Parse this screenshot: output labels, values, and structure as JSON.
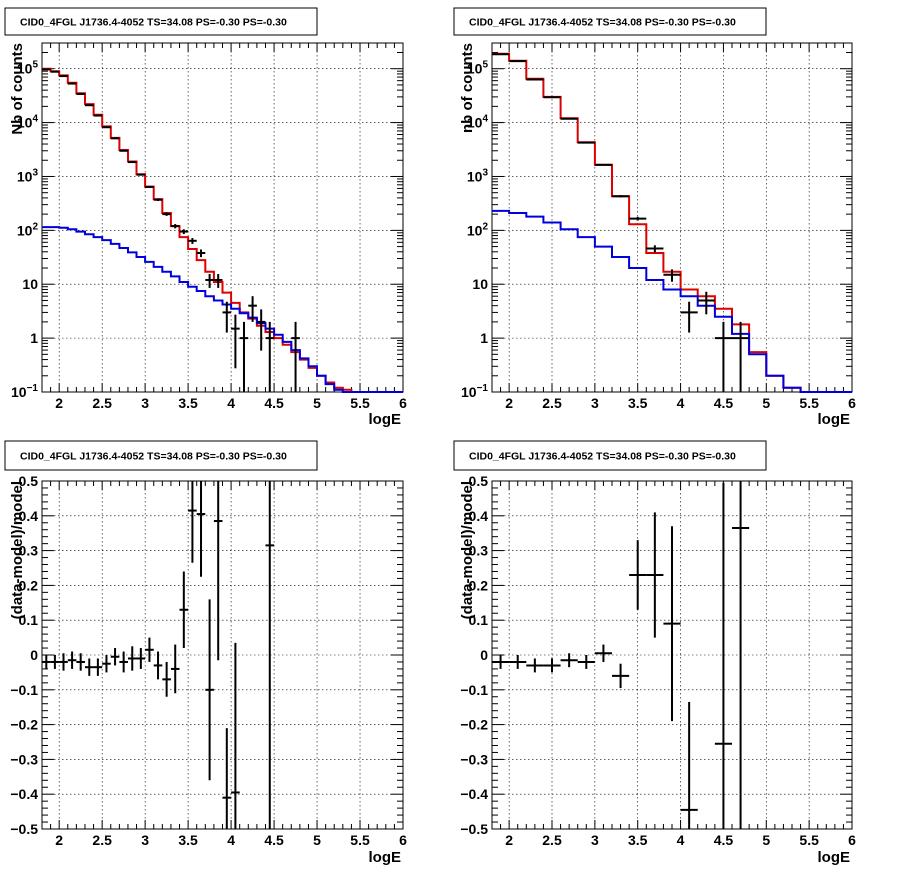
{
  "chart_data": [
    {
      "type": "line",
      "title": "CID0_4FGL J1736.4-4052 TS=34.08 PS=-0.30 PS=-0.30",
      "xlabel": "logE",
      "ylabel": "Nb of counts",
      "xlim": [
        1.8,
        6.0
      ],
      "ylim": [
        0.1,
        300000
      ],
      "log_y": true,
      "grid": true,
      "x_ticks": [
        {
          "v": 2,
          "label": "2"
        },
        {
          "v": 2.5,
          "label": "2.5"
        },
        {
          "v": 3,
          "label": "3"
        },
        {
          "v": 3.5,
          "label": "3.5"
        },
        {
          "v": 4,
          "label": "4"
        },
        {
          "v": 4.5,
          "label": "4.5"
        },
        {
          "v": 5,
          "label": "5"
        },
        {
          "v": 5.5,
          "label": "5.5"
        },
        {
          "v": 6,
          "label": "6"
        }
      ],
      "y_ticks": [
        {
          "v": 0.1,
          "base": "10",
          "exp": "−1"
        },
        {
          "v": 1,
          "base": "1",
          "exp": ""
        },
        {
          "v": 10,
          "base": "10",
          "exp": ""
        },
        {
          "v": 100,
          "base": "10",
          "exp": "2"
        },
        {
          "v": 1000,
          "base": "10",
          "exp": "3"
        },
        {
          "v": 10000,
          "base": "10",
          "exp": "4"
        },
        {
          "v": 100000,
          "base": "10",
          "exp": "5"
        }
      ],
      "series": [
        {
          "color": "#dd0000",
          "style": "step",
          "bin_width": 0.1,
          "x": [
            1.8,
            1.9,
            2.0,
            2.1,
            2.2,
            2.3,
            2.4,
            2.5,
            2.6,
            2.7,
            2.8,
            2.9,
            3.0,
            3.1,
            3.2,
            3.3,
            3.4,
            3.5,
            3.6,
            3.7,
            3.8,
            3.9,
            4.0,
            4.1,
            4.2,
            4.3,
            4.4,
            4.5,
            4.6,
            4.7,
            4.8,
            4.9,
            5.0,
            5.1,
            5.2,
            5.3,
            5.4,
            5.5,
            5.6,
            5.7,
            5.8,
            5.9
          ],
          "y": [
            100000,
            90000,
            75000,
            55000,
            35000,
            22000,
            14000,
            8500,
            5200,
            3100,
            1900,
            1100,
            650,
            380,
            210,
            120,
            75,
            45,
            28,
            17,
            11,
            7,
            4.5,
            3,
            2.3,
            1.7,
            1.3,
            1,
            0.75,
            0.55,
            0.4,
            0.28,
            0.2,
            0.15,
            0.12,
            0.11,
            0.1,
            0.1,
            0.1,
            0.1,
            0.1,
            0.1
          ]
        },
        {
          "color": "#0000dd",
          "style": "step",
          "bin_width": 0.1,
          "x": [
            1.8,
            1.9,
            2.0,
            2.1,
            2.2,
            2.3,
            2.4,
            2.5,
            2.6,
            2.7,
            2.8,
            2.9,
            3.0,
            3.1,
            3.2,
            3.3,
            3.4,
            3.5,
            3.6,
            3.7,
            3.8,
            3.9,
            4.0,
            4.1,
            4.2,
            4.3,
            4.4,
            4.5,
            4.6,
            4.7,
            4.8,
            4.9,
            5.0,
            5.1,
            5.2,
            5.3,
            5.4,
            5.5,
            5.6,
            5.7,
            5.8,
            5.9
          ],
          "y": [
            115,
            115,
            112,
            105,
            95,
            85,
            75,
            66,
            56,
            47,
            39,
            32,
            26,
            21,
            17,
            14,
            11,
            9,
            7.5,
            6,
            5,
            4.2,
            3.5,
            2.9,
            2.4,
            1.9,
            1.5,
            1.15,
            0.85,
            0.6,
            0.42,
            0.3,
            0.2,
            0.14,
            0.11,
            0.1,
            0.1,
            0.1,
            0.1,
            0.1,
            0.1,
            0.1
          ]
        },
        {
          "color": "#000000",
          "style": "points",
          "x": [
            1.85,
            1.95,
            2.05,
            2.15,
            2.25,
            2.35,
            2.45,
            2.55,
            2.65,
            2.75,
            2.85,
            2.95,
            3.05,
            3.15,
            3.25,
            3.35,
            3.45,
            3.55,
            3.65,
            3.75,
            3.85,
            3.95,
            4.05,
            4.15,
            4.25,
            4.35,
            4.45,
            4.75
          ],
          "y": [
            97000,
            88000,
            73000,
            53000,
            34000,
            21000,
            13500,
            8200,
            5100,
            3000,
            1850,
            1080,
            640,
            370,
            200,
            120,
            95,
            64,
            38,
            12,
            12,
            3,
            1.5,
            1,
            4,
            2,
            1,
            1
          ],
          "xerr": 0.05
        }
      ]
    },
    {
      "type": "line",
      "title": "CID0_4FGL J1736.4-4052 TS=34.08 PS=-0.30 PS=-0.30",
      "xlabel": "logE",
      "ylabel": "nb of counts",
      "xlim": [
        1.8,
        6.0
      ],
      "ylim": [
        0.1,
        300000
      ],
      "log_y": true,
      "grid": true,
      "x_ticks": [
        {
          "v": 2,
          "label": "2"
        },
        {
          "v": 2.5,
          "label": "2.5"
        },
        {
          "v": 3,
          "label": "3"
        },
        {
          "v": 3.5,
          "label": "3.5"
        },
        {
          "v": 4,
          "label": "4"
        },
        {
          "v": 4.5,
          "label": "4.5"
        },
        {
          "v": 5,
          "label": "5"
        },
        {
          "v": 5.5,
          "label": "5.5"
        },
        {
          "v": 6,
          "label": "6"
        }
      ],
      "y_ticks": [
        {
          "v": 0.1,
          "base": "10",
          "exp": "−1"
        },
        {
          "v": 1,
          "base": "1",
          "exp": ""
        },
        {
          "v": 10,
          "base": "10",
          "exp": ""
        },
        {
          "v": 100,
          "base": "10",
          "exp": "2"
        },
        {
          "v": 1000,
          "base": "10",
          "exp": "3"
        },
        {
          "v": 10000,
          "base": "10",
          "exp": "4"
        },
        {
          "v": 100000,
          "base": "10",
          "exp": "5"
        }
      ],
      "series": [
        {
          "color": "#dd0000",
          "style": "step",
          "bin_width": 0.2,
          "x": [
            1.8,
            2.0,
            2.2,
            2.4,
            2.6,
            2.8,
            3.0,
            3.2,
            3.4,
            3.6,
            3.8,
            4.0,
            4.2,
            4.4,
            4.6,
            4.8,
            5.0,
            5.2,
            5.4,
            5.6,
            5.8
          ],
          "y": [
            190000,
            140000,
            65000,
            30000,
            12000,
            4300,
            1650,
            430,
            130,
            38,
            17,
            8,
            6,
            3.5,
            1.8,
            0.55,
            0.2,
            0.12,
            0.1,
            0.1,
            0.1
          ]
        },
        {
          "color": "#0000dd",
          "style": "step",
          "bin_width": 0.2,
          "x": [
            1.8,
            2.0,
            2.2,
            2.4,
            2.6,
            2.8,
            3.0,
            3.2,
            3.4,
            3.6,
            3.8,
            4.0,
            4.2,
            4.4,
            4.6,
            4.8,
            5.0,
            5.2,
            5.4,
            5.6,
            5.8
          ],
          "y": [
            230,
            210,
            180,
            140,
            105,
            75,
            50,
            32,
            20,
            12,
            8,
            6,
            4,
            2.5,
            1.2,
            0.5,
            0.2,
            0.12,
            0.1,
            0.1,
            0.1
          ]
        },
        {
          "color": "#000000",
          "style": "points",
          "x": [
            1.9,
            2.1,
            2.3,
            2.5,
            2.7,
            2.9,
            3.1,
            3.3,
            3.5,
            3.7,
            3.9,
            4.1,
            4.3,
            4.5,
            4.7
          ],
          "y": [
            185000,
            138000,
            63000,
            29500,
            11800,
            4250,
            1640,
            430,
            165,
            46,
            15,
            3,
            5,
            1,
            1
          ],
          "xerr": 0.1
        }
      ]
    },
    {
      "type": "scatter",
      "title": "CID0_4FGL J1736.4-4052 TS=34.08 PS=-0.30 PS=-0.30",
      "xlabel": "logE",
      "ylabel": "(data-model)/model",
      "xlim": [
        1.8,
        6.0
      ],
      "ylim": [
        -0.5,
        0.5
      ],
      "grid": true,
      "x_ticks": [
        {
          "v": 2,
          "label": "2"
        },
        {
          "v": 2.5,
          "label": "2.5"
        },
        {
          "v": 3,
          "label": "3"
        },
        {
          "v": 3.5,
          "label": "3.5"
        },
        {
          "v": 4,
          "label": "4"
        },
        {
          "v": 4.5,
          "label": "4.5"
        },
        {
          "v": 5,
          "label": "5"
        },
        {
          "v": 5.5,
          "label": "5.5"
        },
        {
          "v": 6,
          "label": "6"
        }
      ],
      "y_ticks": [
        {
          "v": -0.5,
          "label": "−0.5"
        },
        {
          "v": -0.4,
          "label": "−0.4"
        },
        {
          "v": -0.3,
          "label": "−0.3"
        },
        {
          "v": -0.2,
          "label": "−0.2"
        },
        {
          "v": -0.1,
          "label": "−0.1"
        },
        {
          "v": 0,
          "label": "0"
        },
        {
          "v": 0.1,
          "label": "0.1"
        },
        {
          "v": 0.2,
          "label": "0.2"
        },
        {
          "v": 0.3,
          "label": "0.3"
        },
        {
          "v": 0.4,
          "label": "0.4"
        },
        {
          "v": 0.5,
          "label": "0.5"
        }
      ],
      "series": [
        {
          "color": "#000000",
          "style": "points",
          "xerr": 0.05,
          "x": [
            1.85,
            1.95,
            2.05,
            2.15,
            2.25,
            2.35,
            2.45,
            2.55,
            2.65,
            2.75,
            2.85,
            2.95,
            3.05,
            3.15,
            3.25,
            3.35,
            3.45,
            3.55,
            3.65,
            3.75,
            3.85,
            3.95,
            4.05,
            4.45
          ],
          "y": [
            -0.02,
            -0.02,
            -0.02,
            -0.015,
            -0.02,
            -0.035,
            -0.035,
            -0.025,
            -0.005,
            -0.02,
            -0.01,
            -0.01,
            0.015,
            -0.03,
            -0.07,
            -0.04,
            0.13,
            0.415,
            0.405,
            -0.1,
            0.385,
            -0.41,
            -0.395,
            0.315
          ],
          "yerr": [
            0.02,
            0.02,
            0.025,
            0.025,
            0.025,
            0.025,
            0.025,
            0.025,
            0.025,
            0.03,
            0.035,
            0.03,
            0.035,
            0.04,
            0.05,
            0.07,
            0.11,
            0.15,
            0.18,
            0.26,
            0.4,
            0.2,
            0.43,
            0.9
          ]
        }
      ]
    },
    {
      "type": "scatter",
      "title": "CID0_4FGL J1736.4-4052 TS=34.08 PS=-0.30 PS=-0.30",
      "xlabel": "logE",
      "ylabel": "(data-model)/model",
      "xlim": [
        1.8,
        6.0
      ],
      "ylim": [
        -0.5,
        0.5
      ],
      "grid": true,
      "x_ticks": [
        {
          "v": 2,
          "label": "2"
        },
        {
          "v": 2.5,
          "label": "2.5"
        },
        {
          "v": 3,
          "label": "3"
        },
        {
          "v": 3.5,
          "label": "3.5"
        },
        {
          "v": 4,
          "label": "4"
        },
        {
          "v": 4.5,
          "label": "4.5"
        },
        {
          "v": 5,
          "label": "5"
        },
        {
          "v": 5.5,
          "label": "5.5"
        },
        {
          "v": 6,
          "label": "6"
        }
      ],
      "y_ticks": [
        {
          "v": -0.5,
          "label": "−0.5"
        },
        {
          "v": -0.4,
          "label": "−0.4"
        },
        {
          "v": -0.3,
          "label": "−0.3"
        },
        {
          "v": -0.2,
          "label": "−0.2"
        },
        {
          "v": -0.1,
          "label": "−0.1"
        },
        {
          "v": 0,
          "label": "0"
        },
        {
          "v": 0.1,
          "label": "0.1"
        },
        {
          "v": 0.2,
          "label": "0.2"
        },
        {
          "v": 0.3,
          "label": "0.3"
        },
        {
          "v": 0.4,
          "label": "0.4"
        },
        {
          "v": 0.5,
          "label": "0.5"
        }
      ],
      "series": [
        {
          "color": "#000000",
          "style": "points",
          "xerr": 0.1,
          "x": [
            1.9,
            2.1,
            2.3,
            2.5,
            2.7,
            2.9,
            3.1,
            3.3,
            3.5,
            3.7,
            3.9,
            4.1,
            4.5,
            4.7
          ],
          "y": [
            -0.02,
            -0.02,
            -0.03,
            -0.03,
            -0.015,
            -0.02,
            0.005,
            -0.06,
            0.23,
            0.23,
            0.09,
            -0.445,
            -0.255,
            0.365
          ],
          "yerr": [
            0.02,
            0.02,
            0.02,
            0.02,
            0.02,
            0.02,
            0.025,
            0.035,
            0.1,
            0.18,
            0.28,
            0.31,
            0.75,
            0.9
          ]
        }
      ]
    }
  ]
}
